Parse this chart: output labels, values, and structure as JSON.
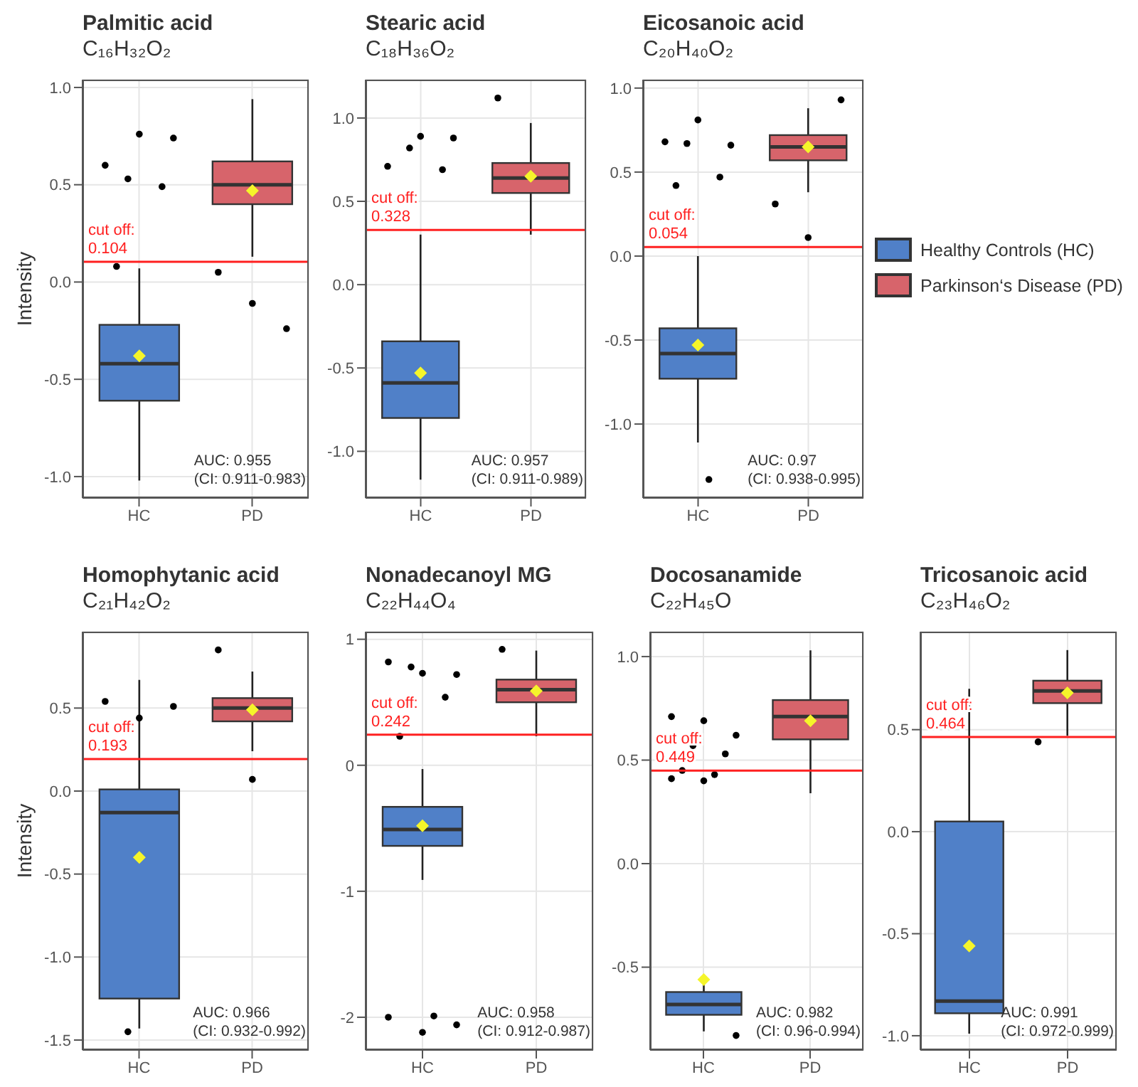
{
  "chart_data": [
    {
      "type": "box",
      "title": "Palmitic acid",
      "subtitle": "C₁₆H₃₂O₂",
      "ylabel": "Intensity",
      "categories": [
        "HC",
        "PD"
      ],
      "ylim": [
        -1.11,
        1.04
      ],
      "yticks": [
        {
          "value": 1,
          "label": "1.0"
        },
        {
          "value": 0.5,
          "label": "0.5"
        },
        {
          "value": 0,
          "label": "0.0"
        },
        {
          "value": -0.5,
          "label": "-0.5"
        },
        {
          "value": -1,
          "label": "-1.0"
        }
      ],
      "grid": true,
      "series": [
        {
          "color": "#5080c8",
          "boxes": [
            {
              "low": -1.02,
              "q1": -0.61,
              "median": -0.42,
              "q3": -0.22,
              "high": 0.07,
              "mean": -0.38,
              "outliers": [
                0.6,
                0.76,
                0.74,
                0.53,
                0.49,
                0.08
              ]
            },
            null
          ]
        },
        {
          "color": "#d7646b",
          "boxes": [
            null,
            {
              "low": 0.13,
              "q1": 0.4,
              "median": 0.5,
              "q3": 0.62,
              "high": 0.94,
              "mean": 0.47,
              "outliers": [
                0.05,
                -0.11,
                -0.24
              ]
            }
          ]
        }
      ],
      "ref_lines": [
        {
          "axis": "y",
          "value": 0.104,
          "label": "cut off:\n0.104",
          "color": "#ff2020"
        }
      ],
      "annotations": [
        "AUC: 0.955",
        "(CI: 0.911-0.983)"
      ]
    },
    {
      "type": "box",
      "title": "Stearic acid",
      "subtitle": "C₁₈H₃₆O₂",
      "categories": [
        "HC",
        "PD"
      ],
      "ylim": [
        -1.28,
        1.23
      ],
      "yticks": [
        {
          "value": 1,
          "label": "1.0"
        },
        {
          "value": 0.5,
          "label": "0.5"
        },
        {
          "value": 0,
          "label": "0.0"
        },
        {
          "value": -0.5,
          "label": "-0.5"
        },
        {
          "value": -1,
          "label": "-1.0"
        }
      ],
      "grid": true,
      "series": [
        {
          "color": "#5080c8",
          "boxes": [
            {
              "low": -1.17,
              "q1": -0.8,
              "median": -0.59,
              "q3": -0.34,
              "high": 0.3,
              "mean": -0.53,
              "outliers": [
                0.71,
                0.89,
                0.88,
                0.82,
                0.69
              ]
            },
            null
          ]
        },
        {
          "color": "#d7646b",
          "boxes": [
            null,
            {
              "low": 0.3,
              "q1": 0.55,
              "median": 0.64,
              "q3": 0.73,
              "high": 0.97,
              "mean": 0.65,
              "outliers": [
                1.12
              ]
            }
          ]
        }
      ],
      "ref_lines": [
        {
          "axis": "y",
          "value": 0.328,
          "label": "cut off:\n0.328",
          "color": "#ff2020"
        }
      ],
      "annotations": [
        "AUC: 0.957",
        "(CI: 0.911-0.989)"
      ]
    },
    {
      "type": "box",
      "title": "Eicosanoic acid",
      "subtitle": "C₂₀H₄₀O₂",
      "categories": [
        "HC",
        "PD"
      ],
      "ylim": [
        -1.44,
        1.05
      ],
      "yticks": [
        {
          "value": 1,
          "label": "1.0"
        },
        {
          "value": 0.5,
          "label": "0.5"
        },
        {
          "value": 0,
          "label": "0.0"
        },
        {
          "value": -0.5,
          "label": "-0.5"
        },
        {
          "value": -1,
          "label": "-1.0"
        }
      ],
      "grid": true,
      "legend": "right",
      "series": [
        {
          "name": "Healthy Controls (HC)",
          "color": "#5080c8",
          "boxes": [
            {
              "low": -1.11,
              "q1": -0.73,
              "median": -0.58,
              "q3": -0.43,
              "high": 0,
              "mean": -0.53,
              "outliers": [
                0.68,
                0.81,
                0.66,
                0.67,
                0.47,
                0.42,
                -1.33
              ]
            },
            null
          ]
        },
        {
          "name": "Parkinson‘s Disease (PD)",
          "color": "#d7646b",
          "boxes": [
            null,
            {
              "low": 0.38,
              "q1": 0.57,
              "median": 0.65,
              "q3": 0.72,
              "high": 0.88,
              "mean": 0.65,
              "outliers": [
                0.31,
                0.11,
                0.93
              ]
            }
          ]
        }
      ],
      "ref_lines": [
        {
          "axis": "y",
          "value": 0.054,
          "label": "cut off:\n0.054",
          "color": "#ff2020"
        }
      ],
      "annotations": [
        "AUC: 0.97",
        "(CI: 0.938-0.995)"
      ]
    },
    {
      "type": "box",
      "title": "Homophytanic acid",
      "subtitle": "C₂₁H₄₂O₂",
      "ylabel": "Intensity",
      "categories": [
        "HC",
        "PD"
      ],
      "ylim": [
        -1.56,
        0.96
      ],
      "yticks": [
        {
          "value": 0.5,
          "label": "0.5"
        },
        {
          "value": 0,
          "label": "0.0"
        },
        {
          "value": -0.5,
          "label": "-0.5"
        },
        {
          "value": -1,
          "label": "-1.0"
        },
        {
          "value": -1.5,
          "label": "-1.5"
        }
      ],
      "grid": true,
      "series": [
        {
          "color": "#5080c8",
          "boxes": [
            {
              "low": -1.43,
              "q1": -1.25,
              "median": -0.13,
              "q3": 0.01,
              "high": 0.67,
              "mean": -0.4,
              "outliers": [
                0.54,
                0.44,
                0.51,
                -1.45
              ]
            },
            null
          ]
        },
        {
          "color": "#d7646b",
          "boxes": [
            null,
            {
              "low": 0.24,
              "q1": 0.42,
              "median": 0.5,
              "q3": 0.56,
              "high": 0.72,
              "mean": 0.49,
              "outliers": [
                0.85,
                0.07
              ]
            }
          ]
        }
      ],
      "ref_lines": [
        {
          "axis": "y",
          "value": 0.193,
          "label": "cut off:\n0.193",
          "color": "#ff2020"
        }
      ],
      "annotations": [
        "AUC: 0.966",
        "(CI: 0.932-0.992)"
      ]
    },
    {
      "type": "box",
      "title": "Nonadecanoyl MG",
      "subtitle": "C₂₂H₄₄O₄",
      "categories": [
        "HC",
        "PD"
      ],
      "ylim": [
        -2.26,
        1.06
      ],
      "yticks": [
        1,
        0,
        -1,
        -2
      ],
      "grid": true,
      "series": [
        {
          "color": "#5080c8",
          "boxes": [
            {
              "low": -0.91,
              "q1": -0.64,
              "median": -0.51,
              "q3": -0.33,
              "high": -0.03,
              "mean": -0.48,
              "outliers": [
                0.82,
                0.73,
                0.72,
                0.78,
                0.54,
                0.23,
                -1.99,
                -2,
                -2.12,
                -2.06
              ]
            },
            null
          ]
        },
        {
          "color": "#d7646b",
          "boxes": [
            null,
            {
              "low": 0.23,
              "q1": 0.5,
              "median": 0.6,
              "q3": 0.68,
              "high": 0.91,
              "mean": 0.59,
              "outliers": [
                0.92
              ]
            }
          ]
        }
      ],
      "ref_lines": [
        {
          "axis": "y",
          "value": 0.242,
          "label": "cut off:\n0.242",
          "color": "#ff2020"
        }
      ],
      "annotations": [
        "AUC: 0.958",
        "(CI: 0.912-0.987)"
      ]
    },
    {
      "type": "box",
      "title": "Docosanamide",
      "subtitle": "C₂₂H₄₅O",
      "categories": [
        "HC",
        "PD"
      ],
      "ylim": [
        -0.9,
        1.12
      ],
      "yticks": [
        {
          "value": 1,
          "label": "1.0"
        },
        {
          "value": 0.5,
          "label": "0.5"
        },
        {
          "value": 0,
          "label": "0.0"
        },
        {
          "value": -0.5,
          "label": "-0.5"
        }
      ],
      "grid": true,
      "series": [
        {
          "color": "#5080c8",
          "boxes": [
            {
              "low": -0.81,
              "q1": -0.73,
              "median": -0.68,
              "q3": -0.62,
              "high": -0.56,
              "mean": -0.56,
              "outliers": [
                0.71,
                0.69,
                0.62,
                0.57,
                0.53,
                0.45,
                0.43,
                0.41,
                0.4,
                -0.83
              ]
            },
            null
          ]
        },
        {
          "color": "#d7646b",
          "boxes": [
            null,
            {
              "low": 0.34,
              "q1": 0.6,
              "median": 0.71,
              "q3": 0.79,
              "high": 1.03,
              "mean": 0.69
            }
          ]
        }
      ],
      "ref_lines": [
        {
          "axis": "y",
          "value": 0.449,
          "label": "cut off:\n0.449",
          "color": "#ff2020"
        }
      ],
      "annotations": [
        "AUC: 0.982",
        "(CI: 0.96-0.994)"
      ]
    },
    {
      "type": "box",
      "title": "Tricosanoic acid",
      "subtitle": "C₂₃H₄₆O₂",
      "categories": [
        "HC",
        "PD"
      ],
      "ylim": [
        -1.07,
        0.98
      ],
      "yticks": [
        {
          "value": 0.5,
          "label": "0.5"
        },
        {
          "value": 0,
          "label": "0.0"
        },
        {
          "value": -0.5,
          "label": "-0.5"
        },
        {
          "value": -1,
          "label": "-1.0"
        }
      ],
      "grid": true,
      "series": [
        {
          "color": "#5080c8",
          "boxes": [
            {
              "low": -0.99,
              "q1": -0.89,
              "median": -0.83,
              "q3": 0.05,
              "high": 0.7,
              "mean": -0.56
            },
            null
          ]
        },
        {
          "color": "#d7646b",
          "boxes": [
            null,
            {
              "low": 0.47,
              "q1": 0.63,
              "median": 0.69,
              "q3": 0.74,
              "high": 0.89,
              "mean": 0.68,
              "outliers": [
                0.44
              ]
            }
          ]
        }
      ],
      "ref_lines": [
        {
          "axis": "y",
          "value": 0.464,
          "label": "cut off:\n0.464",
          "color": "#ff2020"
        }
      ],
      "annotations": [
        "AUC: 0.991",
        "(CI: 0.972-0.999)"
      ]
    }
  ]
}
